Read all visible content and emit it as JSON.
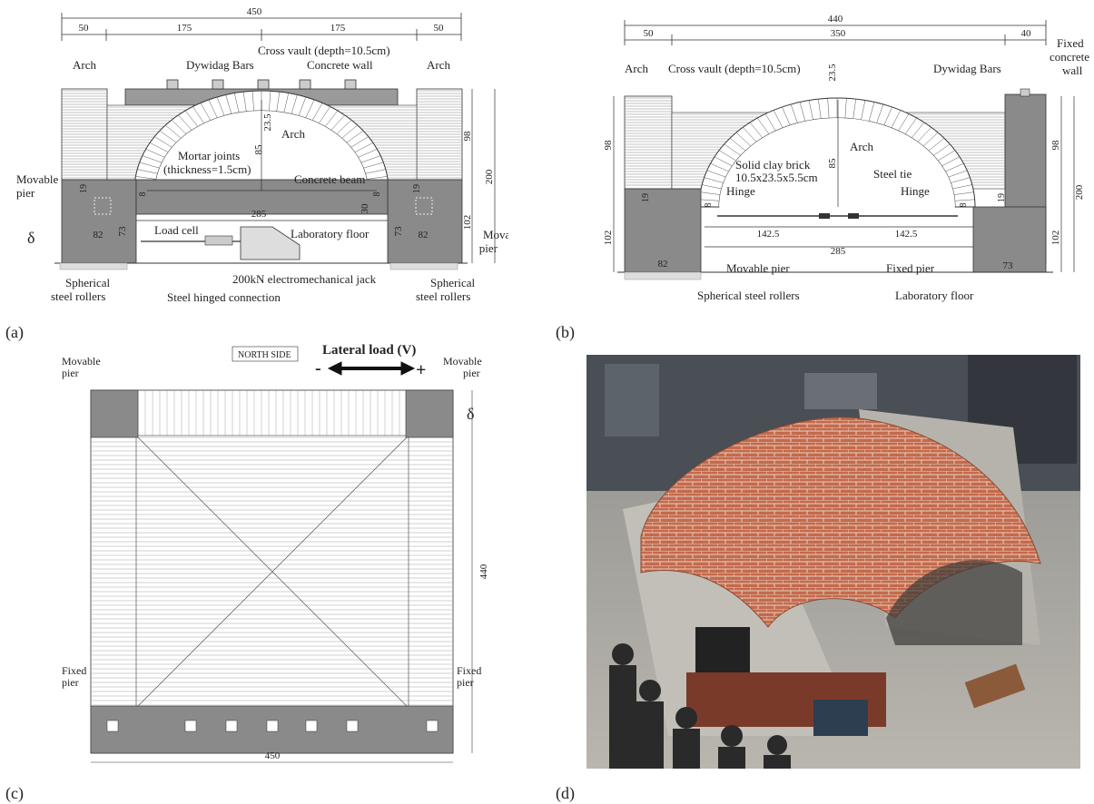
{
  "captions": {
    "a": "(a)",
    "b": "(b)",
    "c": "(c)",
    "d": "(d)"
  },
  "panel_a": {
    "dims": {
      "total": "450",
      "left_margin": "50",
      "left_span": "175",
      "right_span": "175",
      "right_margin": "50",
      "height_98": "98",
      "height_200": "200",
      "height_102": "102",
      "rise": "85",
      "thickness": "23.5",
      "span": "285",
      "pier_width_left": "82",
      "pier_width_right": "82",
      "pier_h_left": "73",
      "pier_h_right": "73",
      "beam_30": "30",
      "ledge_left": "19",
      "ledge_right": "19",
      "eight_left": "8",
      "eight_right": "8"
    },
    "labels": {
      "arch_left": "Arch",
      "arch_right": "Arch",
      "dywidag": "Dywidag Bars",
      "cross_vault": "Cross vault (depth=10.5cm)",
      "concrete_wall": "Concrete wall",
      "arch_mid": "Arch",
      "mortar1": "Mortar joints",
      "mortar2": "(thickness=1.5cm)",
      "concrete_beam": "Concrete beam",
      "movable_left1": "Movable",
      "movable_left2": "pier",
      "movable_right1": "Movable",
      "movable_right2": "pier",
      "delta": "δ",
      "load_cell": "Load cell",
      "lab_floor": "Laboratory floor",
      "jack": "200kN electromechanical jack",
      "rollers_left1": "Spherical",
      "rollers_left2": "steel rollers",
      "rollers_right1": "Spherical",
      "rollers_right2": "steel rollers",
      "hinged": "Steel hinged connection"
    }
  },
  "panel_b": {
    "dims": {
      "total": "440",
      "left_margin": "50",
      "span_mid": "350",
      "right_margin": "40",
      "thickness": "23.5",
      "left_98": "98",
      "right_98": "98",
      "height_200": "200",
      "left_102": "102",
      "right_102": "102",
      "rise": "85",
      "half_left": "142.5",
      "half_right": "142.5",
      "span": "285",
      "pier_left": "82",
      "pier_right": "73",
      "ledge_left": "19",
      "ledge_right": "19",
      "eight_left": "8",
      "eight_right": "8"
    },
    "labels": {
      "arch_left": "Arch",
      "cross_vault": "Cross vault (depth=10.5cm)",
      "dywidag": "Dywidag Bars",
      "fixed1": "Fixed",
      "fixed2": "concrete",
      "fixed3": "wall",
      "arch_mid": "Arch",
      "brick1": "Solid clay brick",
      "brick2": "10.5x23.5x5.5cm",
      "steel_tie": "Steel tie",
      "hinge_left": "Hinge",
      "hinge_right": "Hinge",
      "movable": "Movable pier",
      "fixed_pier": "Fixed pier",
      "rollers": "Spherical steel rollers",
      "lab_floor": "Laboratory floor"
    }
  },
  "panel_c": {
    "labels": {
      "north": "NORTH SIDE",
      "lateral": "Lateral  load (V)",
      "minus": "-",
      "plus": "+",
      "movable_left1": "Movable",
      "movable_left2": "pier",
      "movable_right1": "Movable",
      "movable_right2": "pier",
      "delta": "δ",
      "fixed_left1": "Fixed",
      "fixed_left2": "pier",
      "fixed_right1": "Fixed",
      "fixed_right2": "pier",
      "dim_440": "440",
      "dim_450": "450"
    }
  },
  "colors": {
    "concrete": "#8a8a8a",
    "brick_fill": "#ffffff",
    "line": "#333333",
    "photo_brick": "#c46a4c"
  }
}
